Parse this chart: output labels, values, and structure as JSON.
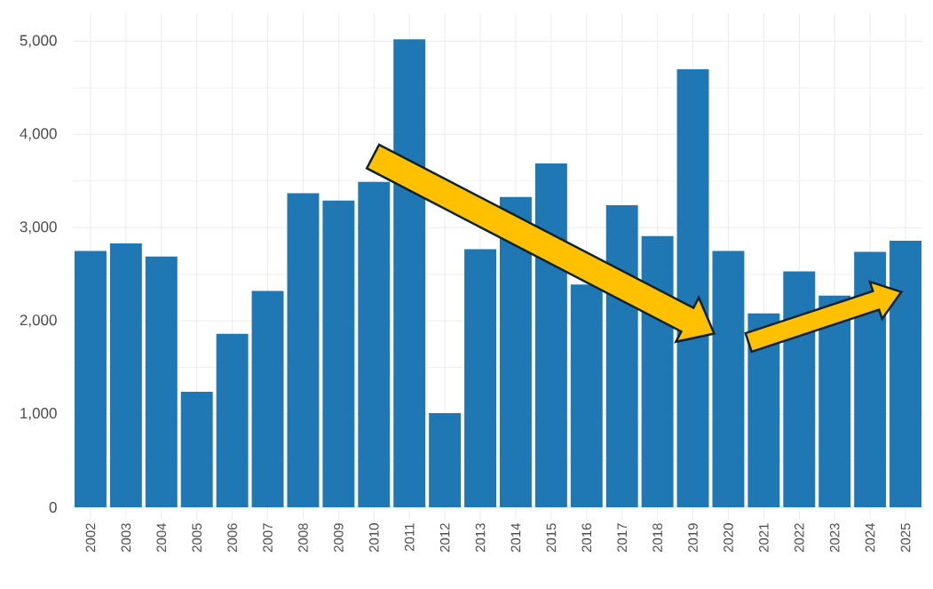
{
  "chart_data": {
    "type": "bar",
    "categories": [
      "2002",
      "2003",
      "2004",
      "2005",
      "2006",
      "2007",
      "2008",
      "2009",
      "2010",
      "2011",
      "2012",
      "2013",
      "2014",
      "2015",
      "2016",
      "2017",
      "2018",
      "2019",
      "2020",
      "2021",
      "2022",
      "2023",
      "2024",
      "2025"
    ],
    "values": [
      2750,
      2830,
      2690,
      1240,
      1860,
      2320,
      3370,
      3290,
      3490,
      5020,
      1010,
      2770,
      3330,
      3690,
      2390,
      3240,
      2910,
      4700,
      2750,
      2080,
      2530,
      2270,
      2740,
      2860
    ],
    "color": "#1f77b4",
    "ylim": [
      0,
      5300
    ],
    "yticks": [
      0,
      {
        "value": 1000,
        "label": "1,000"
      },
      {
        "value": 2000,
        "label": "2,000"
      },
      {
        "value": 3000,
        "label": "3,000"
      },
      {
        "value": 4000,
        "label": "4,000"
      },
      {
        "value": 5000,
        "label": "5,000"
      }
    ],
    "grid": true
  }
}
